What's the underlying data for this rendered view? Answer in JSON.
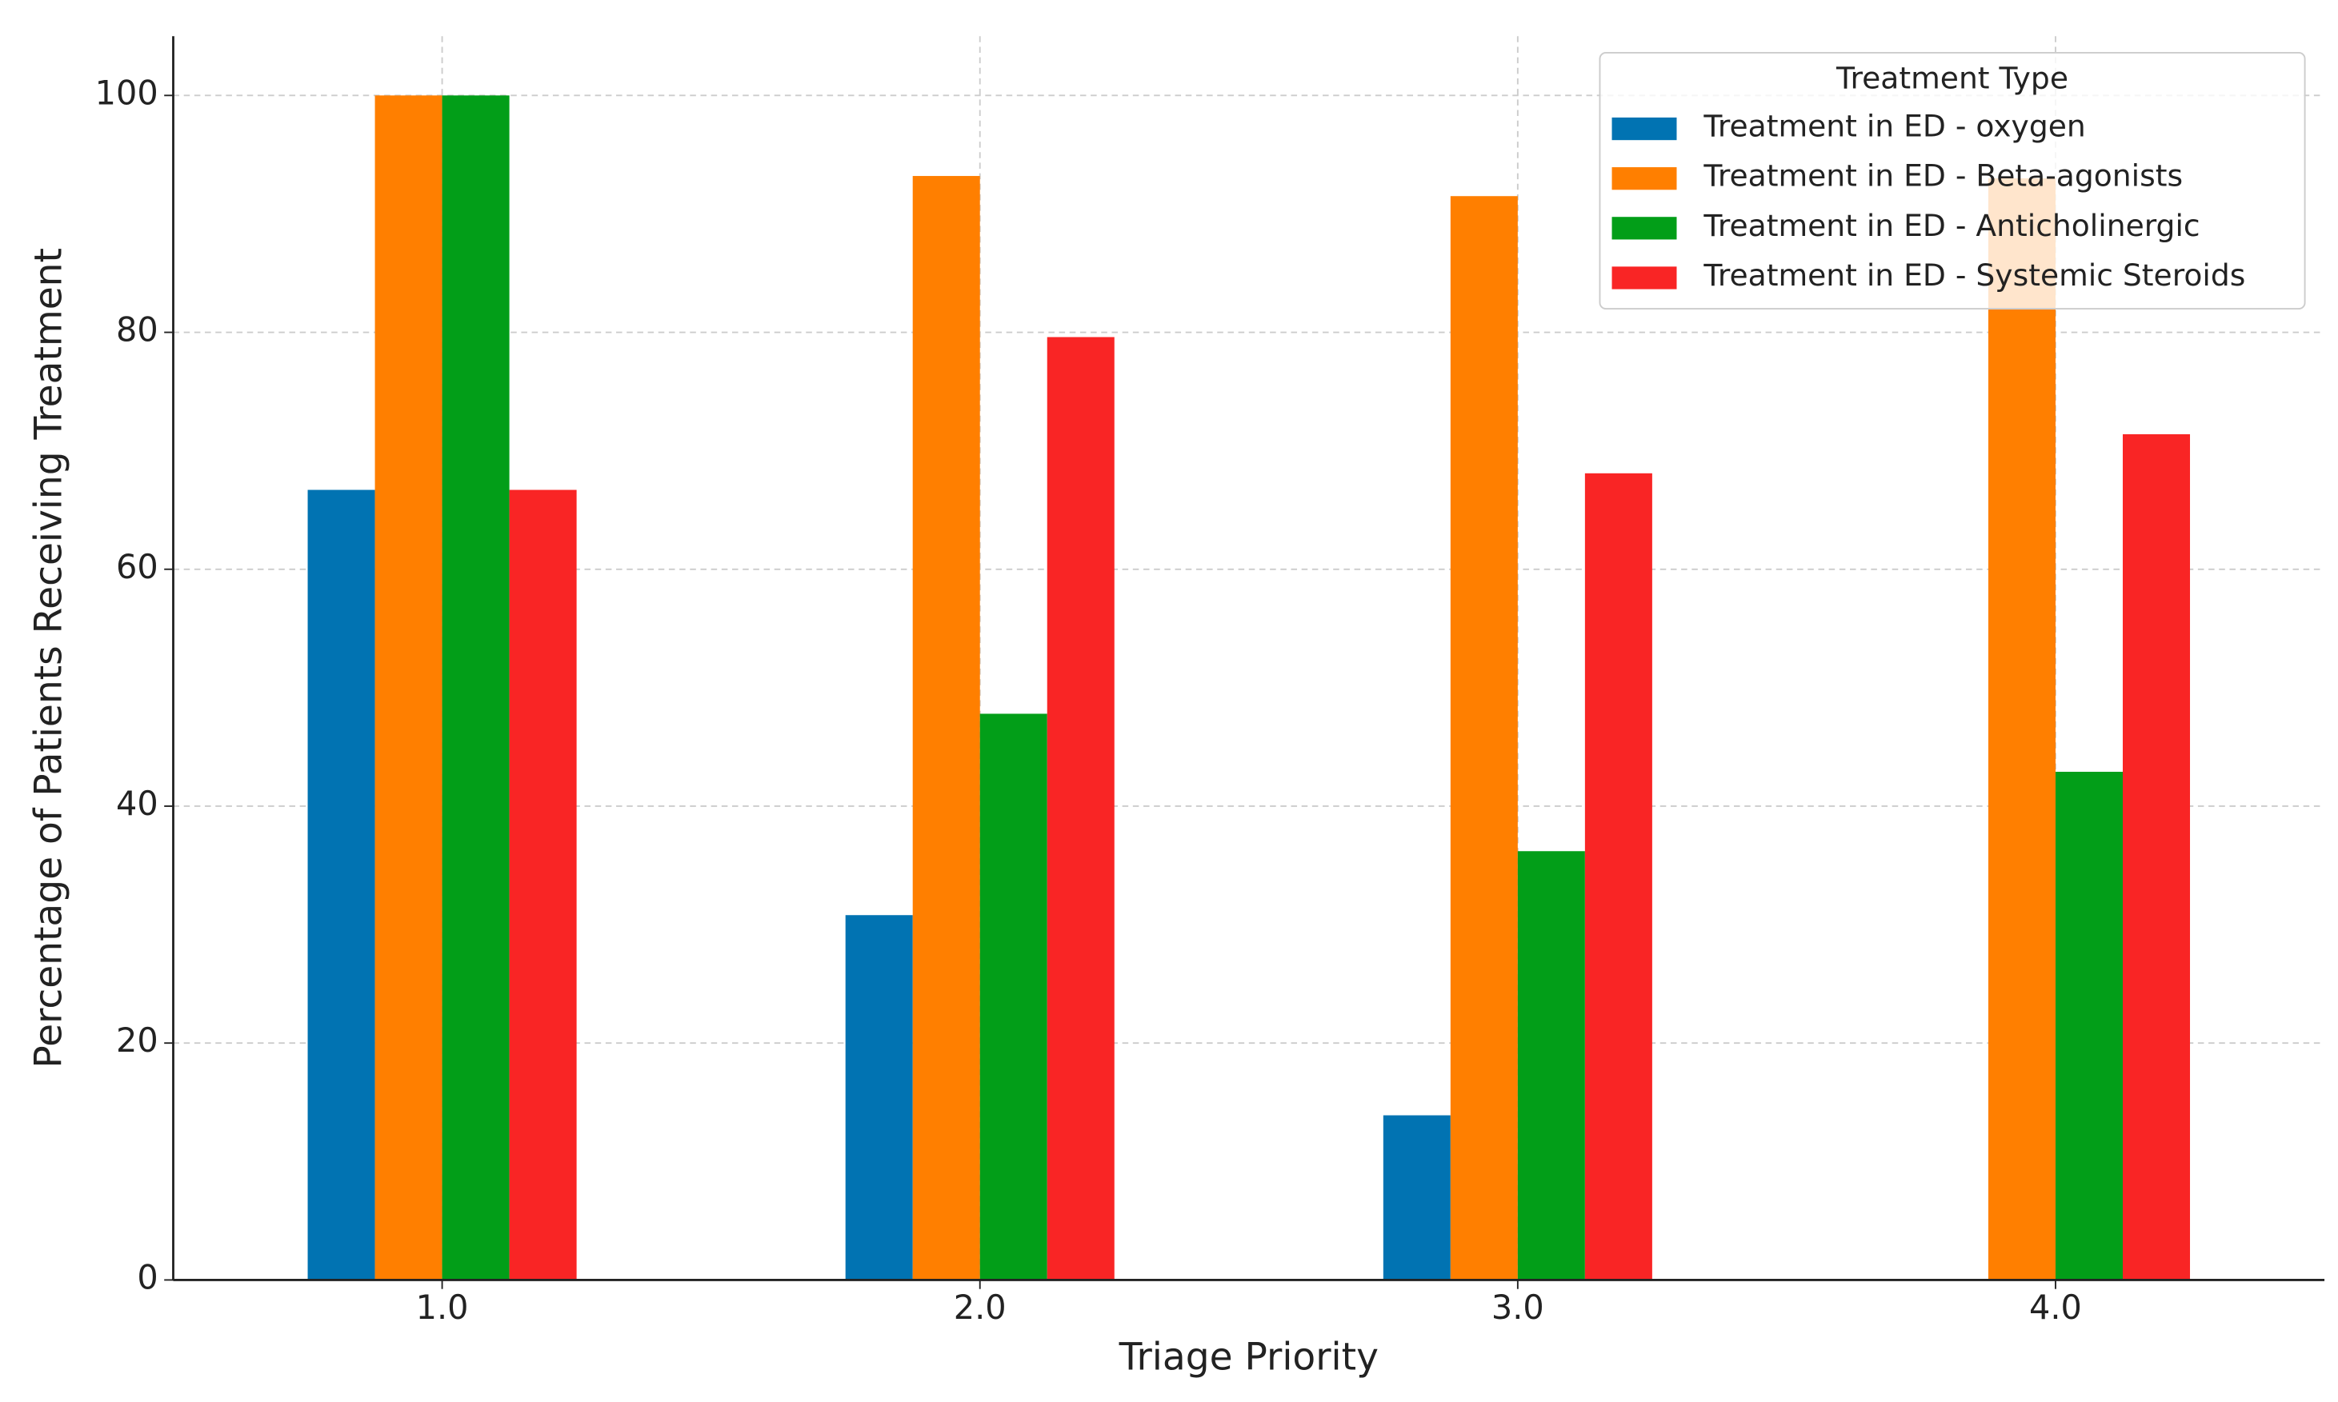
{
  "chart_data": {
    "type": "bar",
    "xlabel": "Triage Priority",
    "ylabel": "Percentage of Patients Receiving Treatment",
    "categories": [
      "1.0",
      "2.0",
      "3.0",
      "4.0"
    ],
    "series": [
      {
        "name": "Treatment in ED - oxygen",
        "color": "#0173b2",
        "values": [
          66.7,
          30.8,
          13.9,
          0
        ]
      },
      {
        "name": "Treatment in ED - Beta-agonists",
        "color": "#ff7f00",
        "values": [
          100,
          93.2,
          91.5,
          93
        ]
      },
      {
        "name": "Treatment in ED - Anticholinergic",
        "color": "#029e18",
        "values": [
          100,
          47.8,
          36.2,
          42.9
        ]
      },
      {
        "name": "Treatment in ED - Systemic Steroids",
        "color": "#f92525",
        "values": [
          66.7,
          79.6,
          68.1,
          71.4
        ]
      }
    ],
    "legend_title": "Treatment Type",
    "legend": "upper right",
    "ylim": [
      0,
      105
    ],
    "yticks": [
      0,
      20,
      40,
      60,
      80,
      100
    ],
    "grid": true
  }
}
